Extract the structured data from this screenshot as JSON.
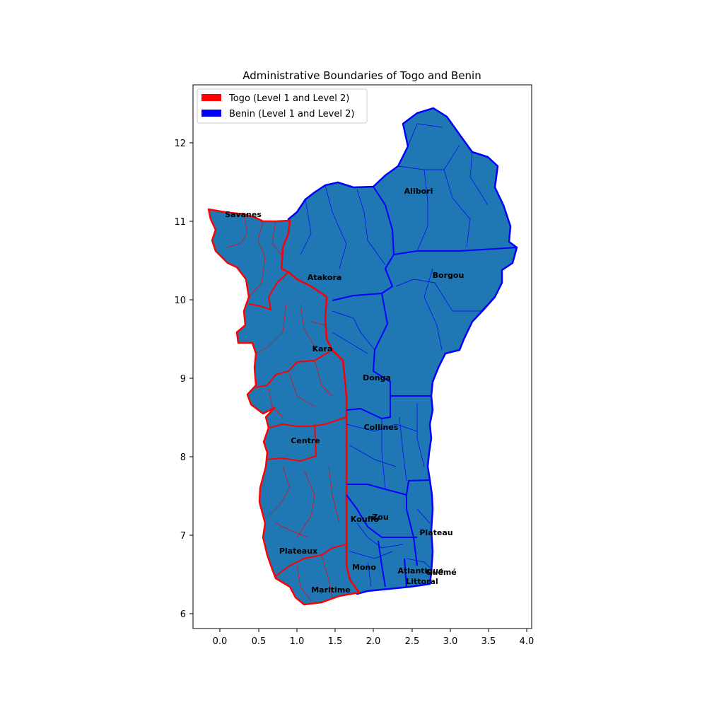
{
  "map": {
    "title": "Administrative Boundaries of Togo and Benin",
    "legend": [
      {
        "label": "Togo (Level 1 and Level 2)",
        "color": "#ff0000"
      },
      {
        "label": "Benin (Level 1 and Level 2)",
        "color": "#0000ff"
      }
    ],
    "fill_color": "#1f77b4",
    "x_ticks": [
      "0.0",
      "0.5",
      "1.0",
      "1.5",
      "2.0",
      "2.5",
      "3.0",
      "3.5",
      "4.0"
    ],
    "y_ticks": [
      "6",
      "7",
      "8",
      "9",
      "10",
      "11",
      "12"
    ],
    "togo_regions": [
      "Savanes",
      "Kara",
      "Centre",
      "Plateaux",
      "Maritime"
    ],
    "benin_departments": [
      "Alibori",
      "Atakora",
      "Borgou",
      "Donga",
      "Collines",
      "Zou",
      "Kouffo",
      "Plateau",
      "Mono",
      "Atlantique",
      "Ouémé",
      "Littoral"
    ]
  }
}
